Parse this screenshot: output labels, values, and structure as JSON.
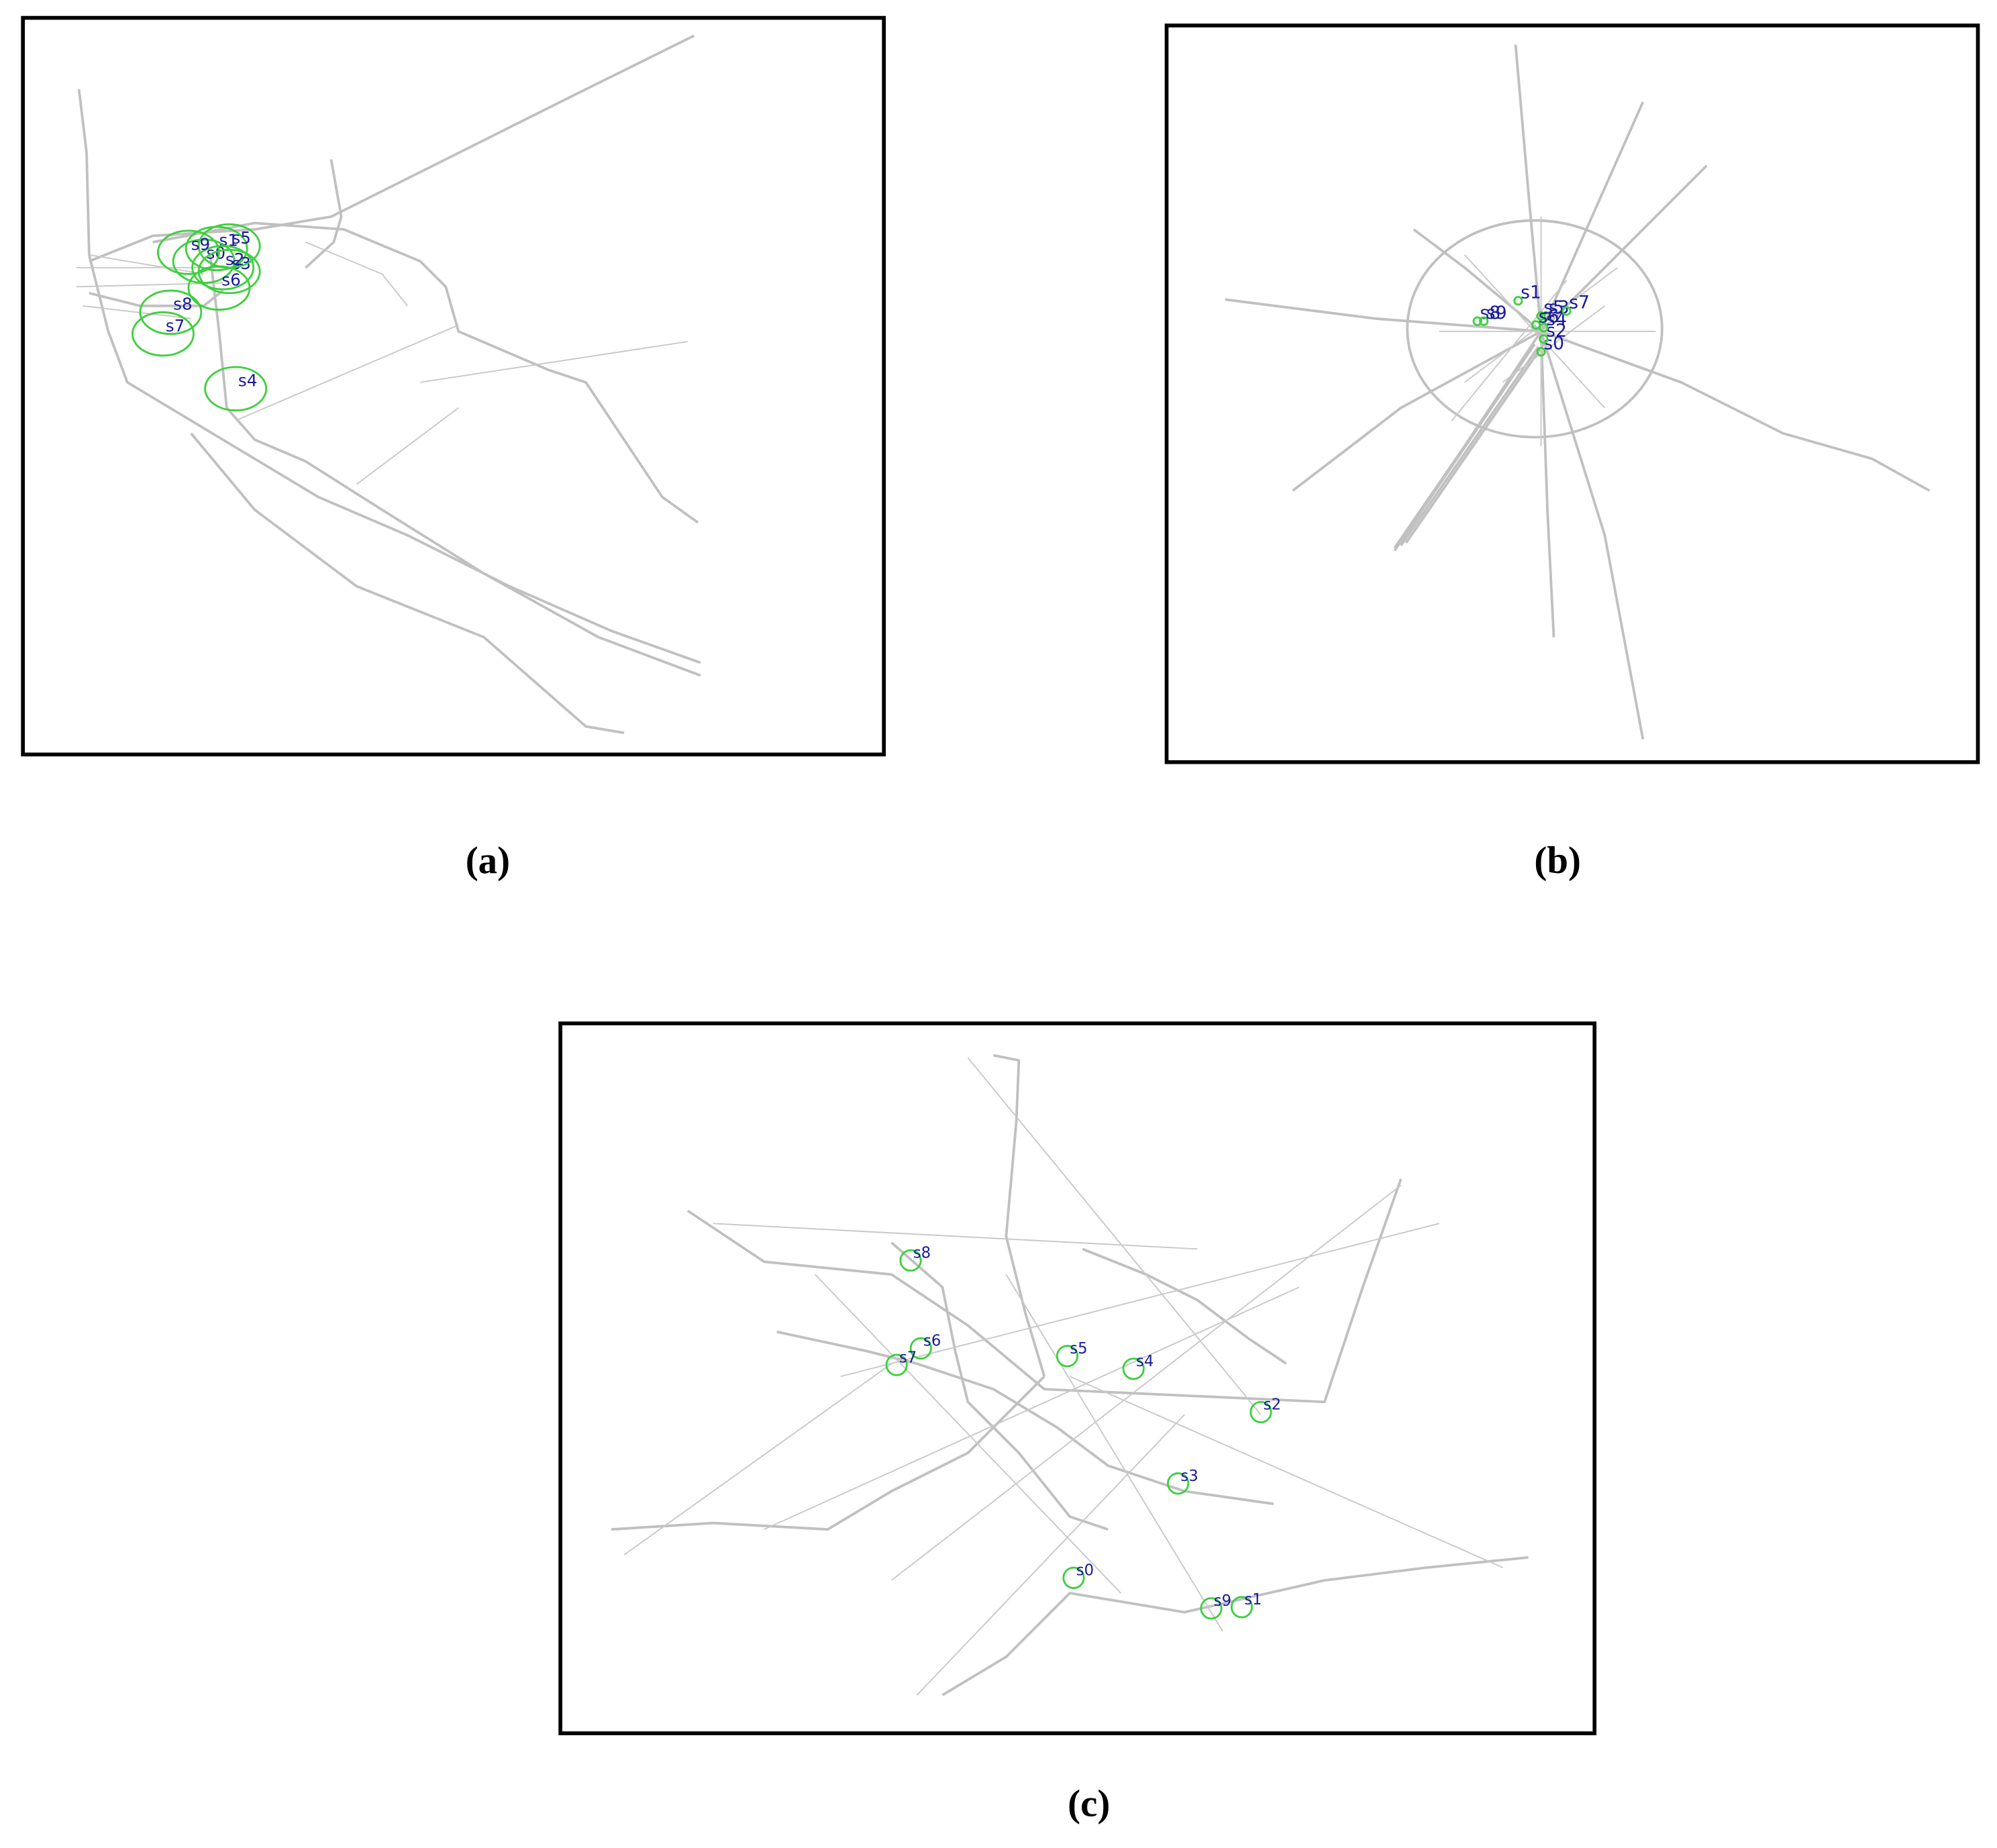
{
  "panels": [
    {
      "caption": "(a)",
      "points": [
        "s0",
        "s1",
        "s2",
        "s3",
        "s4",
        "s5",
        "s6",
        "s7",
        "s8",
        "s9"
      ]
    },
    {
      "caption": "(b)",
      "points": [
        "s0",
        "s1",
        "s2",
        "s3",
        "s4",
        "s5",
        "s6",
        "s7",
        "s8",
        "s9"
      ]
    },
    {
      "caption": "(c)",
      "points": [
        "s0",
        "s1",
        "s2",
        "s3",
        "s4",
        "s5",
        "s6",
        "s7",
        "s8",
        "s9"
      ]
    }
  ]
}
